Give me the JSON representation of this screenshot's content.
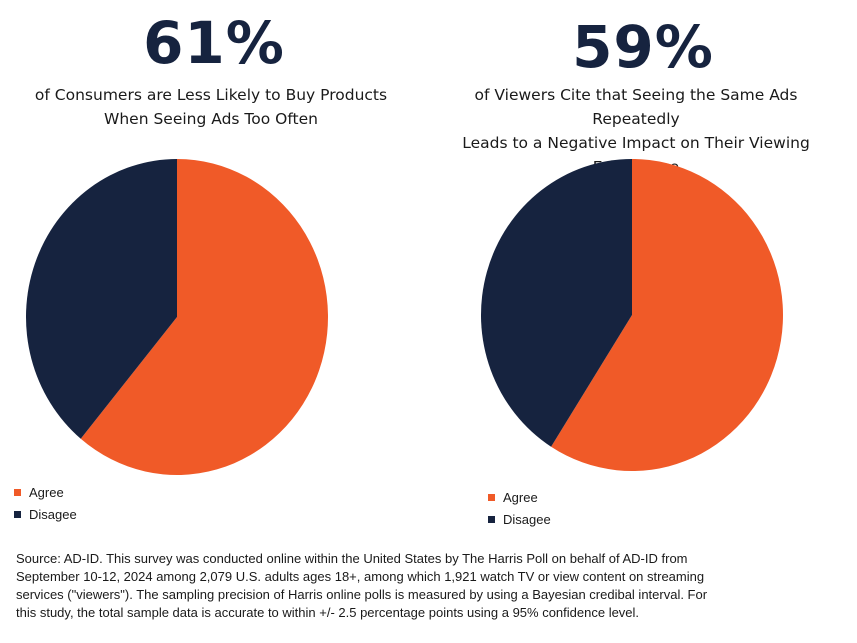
{
  "colors": {
    "agree": "#f05a28",
    "disagree": "#16233f"
  },
  "chart_data": [
    {
      "type": "pie",
      "title": "61%",
      "subtitle_lines": [
        "of Consumers are Less Likely to Buy Products",
        "When Seeing Ads Too Often"
      ],
      "slices": [
        {
          "label": "Agree",
          "value": 61
        },
        {
          "label": "Disagee",
          "value": 39
        }
      ],
      "legend": [
        "Agree",
        "Disagee"
      ],
      "legend_position": "bottom-left"
    },
    {
      "type": "pie",
      "title": "59%",
      "subtitle_lines": [
        "of Viewers Cite that Seeing the Same Ads Repeatedly",
        "Leads to a Negative Impact on Their Viewing",
        "Experience"
      ],
      "slices": [
        {
          "label": "Agree",
          "value": 59
        },
        {
          "label": "Disagee",
          "value": 41
        }
      ],
      "legend": [
        "Agree",
        "Disagee"
      ],
      "legend_position": "bottom-left"
    }
  ],
  "footnote_lines": [
    "Source: AD-ID.  This survey was conducted online within the United States by The Harris Poll on behalf of AD-ID from",
    "September 10-12, 2024 among 2,079 U.S. adults ages 18+, among which 1,921 watch TV or view content on streaming",
    "services (\"viewers\"). The sampling precision of Harris online polls is measured by using a Bayesian credibal interval. For",
    "this study, the total sample data is accurate to within +/- 2.5 percentage points using a 95% confidence level."
  ]
}
